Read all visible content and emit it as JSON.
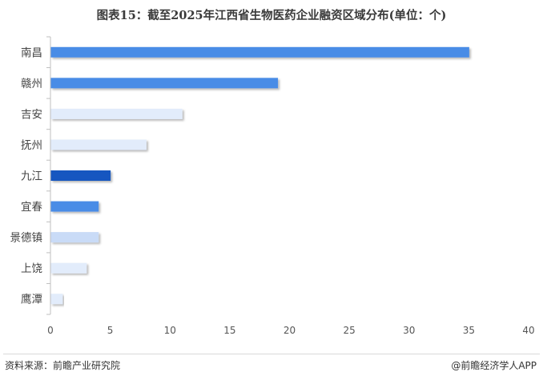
{
  "title": "图表15：截至2025年江西省生物医药企业融资区域分布(单位：个)",
  "footer": {
    "source": "资料来源：前瞻产业研究院",
    "brand": "@前瞻经济学人APP"
  },
  "chart_data": {
    "type": "bar",
    "orientation": "horizontal",
    "title": "图表15：截至2025年江西省生物医药企业融资区域分布(单位：个)",
    "categories": [
      "南昌",
      "赣州",
      "吉安",
      "抚州",
      "九江",
      "宜春",
      "景德镇",
      "上饶",
      "鹰潭"
    ],
    "values": [
      35,
      19,
      11,
      8,
      5,
      4,
      4,
      3,
      1
    ],
    "colors": [
      "#4a8ce6",
      "#4a8ce6",
      "#e2ecfb",
      "#e2ecfb",
      "#1456c0",
      "#4a8ce6",
      "#c9dbf7",
      "#e2ecfb",
      "#e2ecfb"
    ],
    "xlim": [
      0,
      40
    ],
    "xticks": [
      0,
      5,
      10,
      15,
      20,
      25,
      30,
      35,
      40
    ],
    "grid": false,
    "legend": "none"
  }
}
